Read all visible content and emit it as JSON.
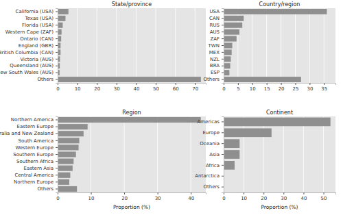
{
  "chart_data": [
    {
      "type": "bar",
      "orientation": "horizontal",
      "title": "State/province",
      "categories": [
        "California (USA)",
        "Texas (USA)",
        "Florida (USA)",
        "Western Cape (ZAF)",
        "Ontario (CAN)",
        "England (GBR)",
        "British Columbia (CAN)",
        "Victoria (AUS)",
        "Queensland (AUS)",
        "New South Wales (AUS)",
        "Others"
      ],
      "values": [
        5.5,
        4,
        2.6,
        2,
        1.8,
        1.5,
        1.5,
        1.2,
        1.1,
        1,
        73
      ],
      "color": "#8f8f8f",
      "xlim": [
        0,
        75.5
      ],
      "xticks": [
        0,
        10,
        20,
        30,
        40,
        50,
        60,
        70
      ],
      "grid": true
    },
    {
      "type": "bar",
      "orientation": "horizontal",
      "title": "Country/region",
      "categories": [
        "USA",
        "CAN",
        "RUS",
        "AUS",
        "ZAF",
        "TWN",
        "MEX",
        "NZL",
        "BRA",
        "ESP",
        "Others"
      ],
      "values": [
        36,
        7,
        6.5,
        5.5,
        4.5,
        3,
        2.8,
        2.5,
        2.3,
        2,
        27
      ],
      "color": "#8f8f8f",
      "xlim": [
        0,
        39
      ],
      "xticks": [
        0,
        5,
        10,
        15,
        20,
        25,
        30,
        35
      ],
      "grid": true
    },
    {
      "type": "bar",
      "orientation": "horizontal",
      "title": "Region",
      "xlabel": "Proportion (%)",
      "categories": [
        "Northern America",
        "Eastern Europe",
        "Australia and New Zealand",
        "South America",
        "Western Europe",
        "Southern Europe",
        "Southern Africa",
        "Eastern Asia",
        "Central America",
        "Northern Europe",
        "Others"
      ],
      "values": [
        43,
        9,
        7.8,
        6.5,
        6.3,
        5.5,
        4.8,
        4.5,
        3.8,
        3.5,
        5.8
      ],
      "color": "#8f8f8f",
      "xlim": [
        0,
        44.5
      ],
      "xticks": [
        0,
        10,
        20,
        30,
        40
      ],
      "grid": true
    },
    {
      "type": "bar",
      "orientation": "horizontal",
      "title": "Continent",
      "xlabel": "Proportion (%)",
      "categories": [
        "Americas",
        "Europe",
        "Oceania",
        "Asia",
        "Africa",
        "Antarctica",
        "Others"
      ],
      "values": [
        53.5,
        24,
        8,
        8,
        5.5,
        0.1,
        0
      ],
      "color": "#8f8f8f",
      "xlim": [
        0,
        56
      ],
      "xticks": [
        0,
        10,
        20,
        30,
        40,
        50
      ],
      "grid": true
    }
  ]
}
